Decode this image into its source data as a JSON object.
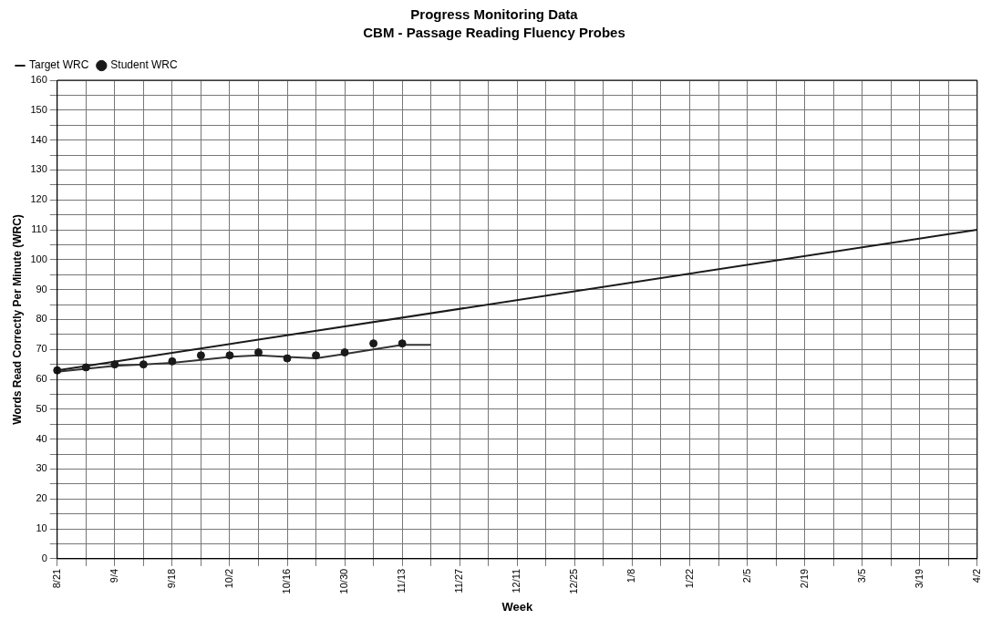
{
  "chart_data": {
    "type": "line",
    "title": "Progress Monitoring Data",
    "subtitle": "CBM - Passage Reading Fluency Probes",
    "xlabel": "Week",
    "ylabel": "Words Read Correctly Per Minute (WRC)",
    "categories": [
      "8/21",
      null,
      "9/4",
      null,
      "9/18",
      null,
      "10/2",
      null,
      "10/16",
      null,
      "10/30",
      null,
      "11/13",
      null,
      "11/27",
      null,
      "12/11",
      null,
      "12/25",
      null,
      "1/8",
      null,
      "1/22",
      null,
      "2/5",
      null,
      "2/19",
      null,
      "3/5",
      null,
      "3/19",
      null,
      "4/2"
    ],
    "series": [
      {
        "name": "Target WRC",
        "type": "line",
        "color": "#1a1a1a",
        "x": [
          "8/21",
          "4/2"
        ],
        "values": [
          63,
          110
        ]
      },
      {
        "name": "Student WRC",
        "type": "scatter",
        "color": "#1a1a1a",
        "values": [
          63,
          64,
          65,
          65,
          66,
          68,
          68,
          69,
          67,
          68,
          69,
          72,
          72,
          null,
          null,
          null,
          null,
          null,
          null,
          null,
          null,
          null,
          null,
          null,
          null,
          null,
          null,
          null,
          null,
          null,
          null,
          null,
          null
        ]
      },
      {
        "type": "line",
        "color": "#333333",
        "values": [
          62.5,
          63.5,
          64.5,
          65,
          65.5,
          66.5,
          67.5,
          68,
          67.5,
          67,
          68.5,
          70,
          71.5,
          71.5,
          null,
          null,
          null,
          null,
          null,
          null,
          null,
          null,
          null,
          null,
          null,
          null,
          null,
          null,
          null,
          null,
          null,
          null,
          null
        ]
      }
    ],
    "ylim": [
      0,
      160
    ],
    "yticks": [
      0,
      {
        "value": 5,
        "label": null
      },
      10,
      {
        "value": 15,
        "label": null
      },
      20,
      {
        "value": 25,
        "label": null
      },
      30,
      {
        "value": 35,
        "label": null
      },
      40,
      {
        "value": 45,
        "label": null
      },
      50,
      {
        "value": 55,
        "label": null
      },
      60,
      {
        "value": 65,
        "label": null
      },
      70,
      {
        "value": 75,
        "label": null
      },
      80,
      {
        "value": 85,
        "label": null
      },
      90,
      {
        "value": 95,
        "label": null
      },
      100,
      {
        "value": 105,
        "label": null
      },
      110,
      {
        "value": 115,
        "label": null
      },
      120,
      {
        "value": 125,
        "label": null
      },
      130,
      {
        "value": 135,
        "label": null
      },
      140,
      {
        "value": 145,
        "label": null
      },
      150,
      {
        "value": 155,
        "label": null
      },
      160
    ],
    "grid": true,
    "legend": "top left"
  }
}
